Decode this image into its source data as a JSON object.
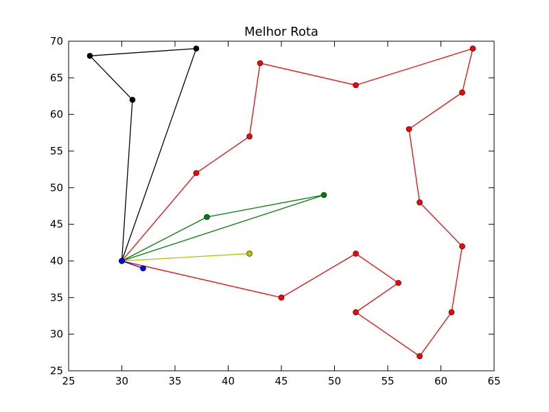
{
  "chart_data": {
    "type": "line",
    "title": "Melhor Rota",
    "xlabel": "",
    "ylabel": "",
    "xlim": [
      25,
      65
    ],
    "ylim": [
      25,
      70
    ],
    "xticks": [
      "25",
      "30",
      "35",
      "40",
      "45",
      "50",
      "55",
      "60",
      "65"
    ],
    "yticks": [
      "25",
      "30",
      "35",
      "40",
      "45",
      "50",
      "55",
      "60",
      "65",
      "70"
    ],
    "grid": false,
    "series": [
      {
        "color": "#ff0000",
        "points": [
          [
            30,
            40
          ],
          [
            37,
            52
          ],
          [
            42,
            57
          ],
          [
            43,
            67
          ],
          [
            52,
            64
          ],
          [
            63,
            69
          ],
          [
            62,
            63
          ],
          [
            57,
            58
          ],
          [
            58,
            48
          ],
          [
            62,
            42
          ],
          [
            61,
            33
          ],
          [
            58,
            27
          ],
          [
            52,
            33
          ],
          [
            56,
            37
          ],
          [
            52,
            41
          ],
          [
            45,
            35
          ],
          [
            30,
            40
          ]
        ]
      },
      {
        "color": "#000000",
        "points": [
          [
            30,
            40
          ],
          [
            31,
            62
          ],
          [
            27,
            68
          ],
          [
            37,
            69
          ],
          [
            30,
            40
          ]
        ]
      },
      {
        "color": "#008000",
        "points": [
          [
            30,
            40
          ],
          [
            38,
            46
          ],
          [
            49,
            49
          ],
          [
            30,
            40
          ]
        ]
      },
      {
        "color": "#bfbf00",
        "points": [
          [
            30,
            40
          ],
          [
            42,
            41
          ],
          [
            30,
            40
          ]
        ]
      },
      {
        "color": "#0000ff",
        "points": [
          [
            30,
            40
          ],
          [
            32,
            39
          ],
          [
            30,
            40
          ]
        ]
      }
    ]
  }
}
